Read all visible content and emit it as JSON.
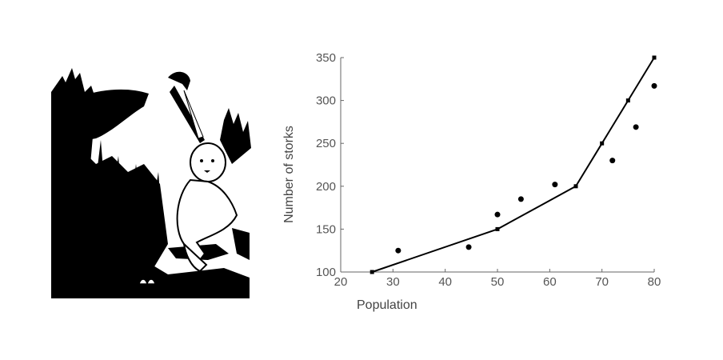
{
  "illustration": {
    "subject": "stork-with-baby-engraving",
    "colors": {
      "ink": "#000000",
      "paper": "#ffffff"
    }
  },
  "chart_data": {
    "type": "scatter",
    "title": "",
    "xlabel": "Population",
    "ylabel": "Number of storks",
    "xlim": [
      20,
      80
    ],
    "ylim": [
      100,
      350
    ],
    "xticks": [
      20,
      30,
      40,
      50,
      60,
      70,
      80
    ],
    "yticks": [
      100,
      150,
      200,
      250,
      300,
      350
    ],
    "grid": false,
    "legend": "none",
    "points": [
      {
        "x": 31,
        "y": 125
      },
      {
        "x": 44.5,
        "y": 129
      },
      {
        "x": 50,
        "y": 167
      },
      {
        "x": 54.5,
        "y": 185
      },
      {
        "x": 61,
        "y": 202
      },
      {
        "x": 72,
        "y": 230
      },
      {
        "x": 76.5,
        "y": 269
      },
      {
        "x": 80,
        "y": 317
      }
    ],
    "fit_line": [
      {
        "x": 26,
        "y": 100
      },
      {
        "x": 50,
        "y": 150
      },
      {
        "x": 65,
        "y": 200
      },
      {
        "x": 70,
        "y": 250
      },
      {
        "x": 75,
        "y": 300
      },
      {
        "x": 80,
        "y": 350
      }
    ],
    "colors": {
      "axis": "#666666",
      "marker": "#000000",
      "line": "#000000"
    }
  }
}
